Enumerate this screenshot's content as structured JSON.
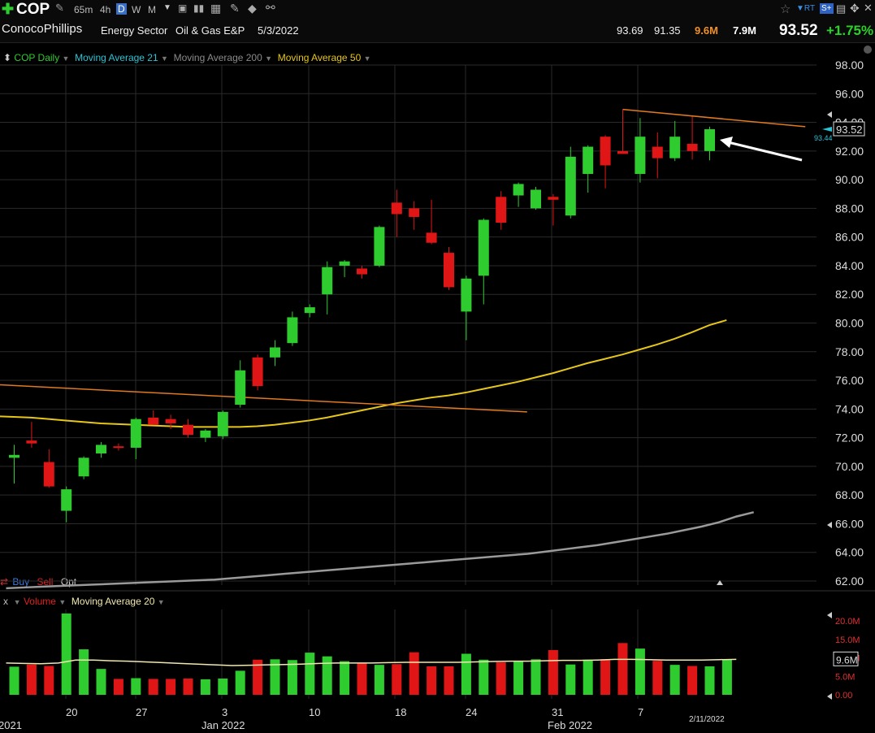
{
  "toolbar": {
    "symbol": "COP",
    "timeframes": [
      "65m",
      "4h",
      "D",
      "W",
      "M"
    ],
    "selected_timeframe": "D",
    "rt_label": "RT",
    "sn_label": "S+"
  },
  "info": {
    "company": "ConocoPhillips",
    "sector": "Energy Sector",
    "industry": "Oil & Gas E&P",
    "date": "5/3/2022",
    "high": "93.69",
    "low": "91.35",
    "volume": "9.6M",
    "avg_volume": "7.9M",
    "last": "93.52",
    "change": "+1.75%"
  },
  "indicators": {
    "main": "COP Daily",
    "ma21": "Moving Average 21",
    "ma200": "Moving Average 200",
    "ma50": "Moving Average 50",
    "volume": "Volume",
    "vol_ma": "Moving Average 20",
    "vol_x": "x"
  },
  "trade": {
    "buy": "Buy",
    "sell": "Sell",
    "opt": "Opt"
  },
  "colors": {
    "up": "#2ecc2e",
    "down": "#e01515",
    "ma50": "#e6c619",
    "ma200": "#9a9a9a",
    "trend": "#e0791f",
    "ma21": "#2bc4d6",
    "grid": "#2a2a2a"
  },
  "chart_data": {
    "type": "candlestick",
    "title": "COP Daily",
    "price_axis": {
      "ticks": [
        "98.00",
        "96.00",
        "94.00",
        "92.00",
        "90.00",
        "88.00",
        "86.00",
        "84.00",
        "82.00",
        "80.00",
        "78.00",
        "76.00",
        "74.00",
        "72.00",
        "70.00",
        "68.00",
        "66.00",
        "64.00",
        "62.00"
      ],
      "range": [
        61.5,
        98.5
      ]
    },
    "last_price_label": "93.52",
    "ma21_marker": "93.44",
    "x_labels": [
      "2021",
      "20",
      "27",
      "Jan 2022",
      "3",
      "10",
      "18",
      "24",
      "31",
      "Feb 2022",
      "7",
      "2/11/2022"
    ],
    "candles": [
      {
        "o": 70.6,
        "h": 71.5,
        "l": 68.8,
        "c": 70.8
      },
      {
        "o": 71.8,
        "h": 73.1,
        "l": 71.3,
        "c": 71.6
      },
      {
        "o": 70.3,
        "h": 71.2,
        "l": 68.5,
        "c": 68.6
      },
      {
        "o": 66.9,
        "h": 68.6,
        "l": 66.1,
        "c": 68.4
      },
      {
        "o": 69.3,
        "h": 70.7,
        "l": 69.1,
        "c": 70.6
      },
      {
        "o": 70.9,
        "h": 71.7,
        "l": 70.6,
        "c": 71.5
      },
      {
        "o": 71.4,
        "h": 71.6,
        "l": 71.1,
        "c": 71.3
      },
      {
        "o": 71.3,
        "h": 73.4,
        "l": 70.5,
        "c": 73.3
      },
      {
        "o": 73.4,
        "h": 73.9,
        "l": 72.9,
        "c": 72.9
      },
      {
        "o": 73.3,
        "h": 73.6,
        "l": 72.6,
        "c": 73.0
      },
      {
        "o": 72.9,
        "h": 73.3,
        "l": 72.0,
        "c": 72.2
      },
      {
        "o": 72.0,
        "h": 72.6,
        "l": 71.7,
        "c": 72.5
      },
      {
        "o": 72.1,
        "h": 73.9,
        "l": 71.9,
        "c": 73.8
      },
      {
        "o": 74.3,
        "h": 77.4,
        "l": 74.1,
        "c": 76.7
      },
      {
        "o": 77.6,
        "h": 77.8,
        "l": 75.3,
        "c": 75.6
      },
      {
        "o": 77.6,
        "h": 78.8,
        "l": 77.0,
        "c": 78.3
      },
      {
        "o": 78.6,
        "h": 80.8,
        "l": 78.4,
        "c": 80.4
      },
      {
        "o": 80.7,
        "h": 81.3,
        "l": 80.4,
        "c": 81.1
      },
      {
        "o": 82.0,
        "h": 84.3,
        "l": 80.6,
        "c": 83.9
      },
      {
        "o": 84.0,
        "h": 84.4,
        "l": 83.2,
        "c": 84.3
      },
      {
        "o": 83.8,
        "h": 84.0,
        "l": 83.1,
        "c": 83.4
      },
      {
        "o": 84.0,
        "h": 86.8,
        "l": 83.9,
        "c": 86.7
      },
      {
        "o": 88.4,
        "h": 89.3,
        "l": 86.0,
        "c": 87.6
      },
      {
        "o": 88.0,
        "h": 88.5,
        "l": 86.5,
        "c": 87.4
      },
      {
        "o": 86.3,
        "h": 88.6,
        "l": 85.5,
        "c": 85.6
      },
      {
        "o": 84.9,
        "h": 85.3,
        "l": 82.3,
        "c": 82.5
      },
      {
        "o": 80.8,
        "h": 83.3,
        "l": 78.8,
        "c": 83.1
      },
      {
        "o": 83.3,
        "h": 87.3,
        "l": 81.3,
        "c": 87.2
      },
      {
        "o": 88.8,
        "h": 89.2,
        "l": 86.5,
        "c": 87.0
      },
      {
        "o": 88.9,
        "h": 89.8,
        "l": 88.1,
        "c": 89.7
      },
      {
        "o": 88.0,
        "h": 89.5,
        "l": 87.9,
        "c": 89.3
      },
      {
        "o": 88.8,
        "h": 89.0,
        "l": 86.8,
        "c": 88.6
      },
      {
        "o": 87.5,
        "h": 92.3,
        "l": 87.3,
        "c": 91.6
      },
      {
        "o": 90.4,
        "h": 92.4,
        "l": 89.1,
        "c": 92.3
      },
      {
        "o": 93.0,
        "h": 93.1,
        "l": 89.4,
        "c": 91.0
      },
      {
        "o": 92.0,
        "h": 94.9,
        "l": 91.8,
        "c": 91.8
      },
      {
        "o": 90.4,
        "h": 94.3,
        "l": 89.8,
        "c": 93.0
      },
      {
        "o": 92.3,
        "h": 93.3,
        "l": 90.1,
        "c": 91.5
      },
      {
        "o": 91.5,
        "h": 94.1,
        "l": 91.3,
        "c": 93.0
      },
      {
        "o": 92.5,
        "h": 94.4,
        "l": 91.4,
        "c": 92.0
      },
      {
        "o": 92.0,
        "h": 93.7,
        "l": 91.35,
        "c": 93.52
      }
    ],
    "ma50": [
      73.5,
      73.45,
      73.4,
      73.3,
      73.2,
      73.1,
      73.0,
      72.95,
      72.9,
      72.85,
      72.8,
      72.75,
      72.75,
      72.75,
      72.75,
      72.8,
      72.9,
      73.05,
      73.2,
      73.4,
      73.65,
      73.9,
      74.15,
      74.4,
      74.6,
      74.8,
      74.95,
      75.15,
      75.4,
      75.65,
      75.9,
      76.2,
      76.5,
      76.85,
      77.2,
      77.5,
      77.8,
      78.15,
      78.5,
      78.9,
      79.35,
      79.85,
      80.2
    ],
    "ma200": [
      61.5,
      61.55,
      61.6,
      61.65,
      61.7,
      61.75,
      61.8,
      61.85,
      61.9,
      61.95,
      62.0,
      62.05,
      62.1,
      62.2,
      62.3,
      62.4,
      62.5,
      62.6,
      62.7,
      62.8,
      62.9,
      63.0,
      63.1,
      63.2,
      63.3,
      63.4,
      63.5,
      63.6,
      63.7,
      63.8,
      63.9,
      64.05,
      64.2,
      64.35,
      64.5,
      64.7,
      64.9,
      65.1,
      65.3,
      65.55,
      65.8,
      66.1,
      66.5,
      66.8
    ],
    "trendlines": [
      {
        "from": [
          -1,
          75.7
        ],
        "to": [
          29.5,
          73.8
        ]
      },
      {
        "from": [
          35,
          94.9
        ],
        "to": [
          45.5,
          93.7
        ]
      }
    ],
    "volume": {
      "axis_ticks": [
        "20.0M",
        "15.0M",
        "10.0M",
        "5.0M",
        "0.00"
      ],
      "last_label": "9.6M",
      "range": [
        0,
        23
      ],
      "values": [
        7.6,
        8.2,
        7.8,
        22.0,
        12.3,
        7.0,
        4.3,
        4.5,
        4.3,
        4.3,
        4.4,
        4.2,
        4.4,
        6.5,
        9.5,
        9.6,
        9.4,
        11.4,
        10.4,
        9.1,
        8.7,
        8.1,
        8.3,
        11.5,
        7.7,
        7.7,
        11.1,
        9.5,
        8.8,
        9.0,
        9.6,
        12.1,
        8.2,
        9.5,
        9.6,
        14.0,
        12.5,
        9.2,
        8.1,
        7.8,
        7.7,
        9.6
      ],
      "ma20": [
        8.6,
        8.5,
        8.4,
        8.6,
        9.4,
        9.4,
        9.2,
        9.1,
        8.9,
        8.7,
        8.5,
        8.3,
        8.1,
        7.9,
        8.0,
        8.1,
        8.2,
        8.3,
        8.5,
        8.6,
        8.6,
        8.6,
        8.7,
        8.8,
        8.8,
        8.8,
        8.8,
        8.9,
        9.0,
        9.1,
        9.1,
        9.2,
        9.3,
        9.3,
        9.4,
        9.6,
        9.6,
        9.5,
        9.4,
        9.4,
        9.4,
        9.5,
        9.6
      ]
    }
  }
}
